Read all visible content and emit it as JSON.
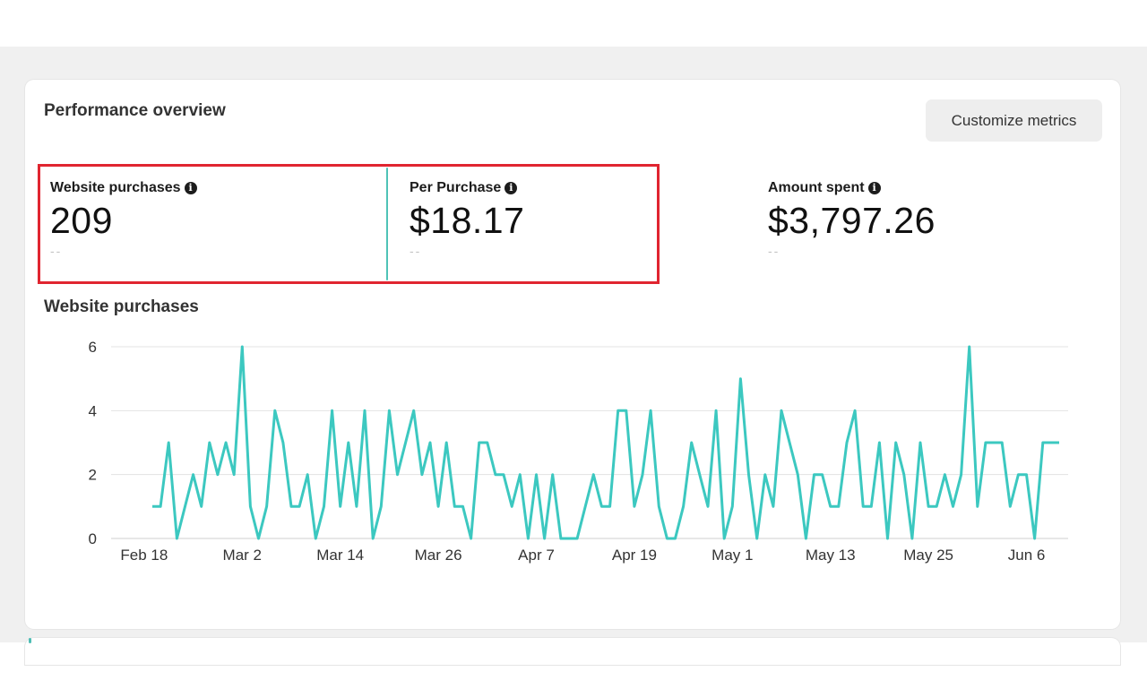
{
  "panel": {
    "title": "Performance overview",
    "customize_label": "Customize metrics"
  },
  "metrics": [
    {
      "label": "Website purchases",
      "value": "209",
      "delta": "--"
    },
    {
      "label": "Per Purchase",
      "value": "$18.17",
      "delta": "--"
    },
    {
      "label": "Amount spent",
      "value": "$3,797.26",
      "delta": "--"
    }
  ],
  "icons": {
    "info": "info-circle-icon"
  },
  "colors": {
    "line": "#3cc8c0",
    "highlight": "#e02530",
    "grid": "#e3e3e3"
  },
  "chart_data": {
    "type": "line",
    "title": "Website purchases",
    "xlabel": "",
    "ylabel": "",
    "ylim": [
      0,
      6
    ],
    "yticks": [
      "0",
      "2",
      "4",
      "6"
    ],
    "xticks": [
      "Feb 18",
      "Mar 2",
      "Mar 14",
      "Mar 26",
      "Apr 7",
      "Apr 19",
      "May 1",
      "May 13",
      "May 25",
      "Jun 6"
    ],
    "grid": true,
    "series": [
      {
        "values": [
          1,
          1,
          3,
          0,
          1,
          2,
          1,
          3,
          2,
          3,
          2,
          6,
          1,
          0,
          1,
          4,
          3,
          1,
          1,
          2,
          0,
          1,
          4,
          1,
          3,
          1,
          4,
          0,
          1,
          4,
          2,
          3,
          4,
          2,
          3,
          1,
          3,
          1,
          1,
          0,
          3,
          3,
          2,
          2,
          1,
          2,
          0,
          2,
          0,
          2,
          0,
          0,
          0,
          1,
          2,
          1,
          1,
          4,
          4,
          1,
          2,
          4,
          1,
          0,
          0,
          1,
          3,
          2,
          1,
          4,
          0,
          1,
          5,
          2,
          0,
          2,
          1,
          4,
          3,
          2,
          0,
          2,
          2,
          1,
          1,
          3,
          4,
          1,
          1,
          3,
          0,
          3,
          2,
          0,
          3,
          1,
          1,
          2,
          1,
          2,
          6,
          1,
          3,
          3,
          3,
          1,
          2,
          2,
          0,
          3,
          3,
          3
        ]
      }
    ]
  }
}
